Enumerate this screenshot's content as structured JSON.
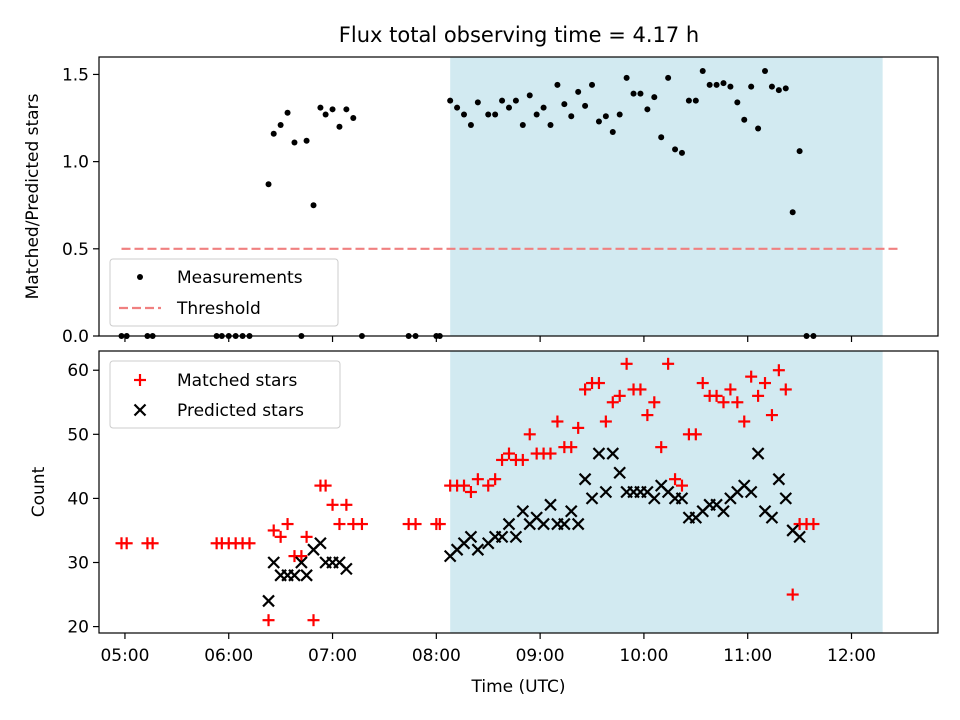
{
  "chart_data": [
    {
      "type": "scatter",
      "title": "Flux total observing time = 4.17 h",
      "xlabel": "",
      "ylabel": "Matched/Predicted stars",
      "ylim": [
        0,
        1.6
      ],
      "xlim": [
        "04:45",
        "12:50"
      ],
      "yticks": [
        "0.0",
        "0.5",
        "1.0",
        "1.5"
      ],
      "grid": false,
      "legend_position": "lower-left",
      "shaded_span": {
        "from": "08:08",
        "to": "12:18",
        "color": "#add8e6"
      },
      "threshold": {
        "name": "Threshold",
        "value": 0.5,
        "from": "04:58",
        "to": "12:28",
        "color": "#f08080"
      },
      "series": [
        {
          "name": "Measurements",
          "color": "#000000",
          "points": [
            [
              "04:58",
              0.0
            ],
            [
              "05:01",
              0.0
            ],
            [
              "05:13",
              0.0
            ],
            [
              "05:16",
              0.0
            ],
            [
              "05:53",
              0.0
            ],
            [
              "05:56",
              0.0
            ],
            [
              "06:00",
              0.0
            ],
            [
              "06:04",
              0.0
            ],
            [
              "06:08",
              0.0
            ],
            [
              "06:12",
              0.0
            ],
            [
              "06:23",
              0.87
            ],
            [
              "06:26",
              1.16
            ],
            [
              "06:30",
              1.21
            ],
            [
              "06:34",
              1.28
            ],
            [
              "06:38",
              1.11
            ],
            [
              "06:42",
              0.0
            ],
            [
              "06:45",
              1.12
            ],
            [
              "06:49",
              0.75
            ],
            [
              "06:53",
              1.31
            ],
            [
              "06:56",
              1.27
            ],
            [
              "07:00",
              1.3
            ],
            [
              "07:04",
              1.2
            ],
            [
              "07:08",
              1.3
            ],
            [
              "07:12",
              1.25
            ],
            [
              "07:17",
              0.0
            ],
            [
              "07:44",
              0.0
            ],
            [
              "07:48",
              0.0
            ],
            [
              "08:00",
              0.0
            ],
            [
              "08:02",
              0.0
            ],
            [
              "08:08",
              1.35
            ],
            [
              "08:12",
              1.31
            ],
            [
              "08:16",
              1.27
            ],
            [
              "08:20",
              1.21
            ],
            [
              "08:24",
              1.34
            ],
            [
              "08:30",
              1.27
            ],
            [
              "08:34",
              1.27
            ],
            [
              "08:38",
              1.35
            ],
            [
              "08:42",
              1.31
            ],
            [
              "08:46",
              1.35
            ],
            [
              "08:50",
              1.21
            ],
            [
              "08:54",
              1.38
            ],
            [
              "08:58",
              1.27
            ],
            [
              "09:02",
              1.31
            ],
            [
              "09:06",
              1.21
            ],
            [
              "09:10",
              1.44
            ],
            [
              "09:14",
              1.33
            ],
            [
              "09:18",
              1.26
            ],
            [
              "09:22",
              1.4
            ],
            [
              "09:26",
              1.32
            ],
            [
              "09:30",
              1.44
            ],
            [
              "09:34",
              1.23
            ],
            [
              "09:38",
              1.26
            ],
            [
              "09:42",
              1.17
            ],
            [
              "09:46",
              1.27
            ],
            [
              "09:50",
              1.48
            ],
            [
              "09:54",
              1.39
            ],
            [
              "09:58",
              1.39
            ],
            [
              "10:02",
              1.3
            ],
            [
              "10:06",
              1.37
            ],
            [
              "10:10",
              1.14
            ],
            [
              "10:14",
              1.48
            ],
            [
              "10:18",
              1.07
            ],
            [
              "10:22",
              1.05
            ],
            [
              "10:26",
              1.35
            ],
            [
              "10:30",
              1.35
            ],
            [
              "10:34",
              1.52
            ],
            [
              "10:38",
              1.44
            ],
            [
              "10:42",
              1.44
            ],
            [
              "10:46",
              1.45
            ],
            [
              "10:50",
              1.43
            ],
            [
              "10:54",
              1.34
            ],
            [
              "10:58",
              1.24
            ],
            [
              "11:02",
              1.43
            ],
            [
              "11:06",
              1.19
            ],
            [
              "11:10",
              1.52
            ],
            [
              "11:14",
              1.43
            ],
            [
              "11:18",
              1.41
            ],
            [
              "11:22",
              1.42
            ],
            [
              "11:26",
              0.71
            ],
            [
              "11:30",
              1.06
            ],
            [
              "11:34",
              0.0
            ],
            [
              "11:38",
              0.0
            ]
          ]
        }
      ]
    },
    {
      "type": "scatter",
      "title": "",
      "xlabel": "Time (UTC)",
      "ylabel": "Count",
      "ylim": [
        19,
        63
      ],
      "xlim": [
        "04:45",
        "12:50"
      ],
      "xticks": [
        "05:00",
        "06:00",
        "07:00",
        "08:00",
        "09:00",
        "10:00",
        "11:00",
        "12:00"
      ],
      "yticks": [
        "20",
        "30",
        "40",
        "50",
        "60"
      ],
      "grid": false,
      "legend_position": "upper-left",
      "shaded_span": {
        "from": "08:08",
        "to": "12:18",
        "color": "#add8e6"
      },
      "series": [
        {
          "name": "Matched stars",
          "marker": "plus",
          "color": "#ff0000",
          "points": [
            [
              "04:58",
              33
            ],
            [
              "05:01",
              33
            ],
            [
              "05:13",
              33
            ],
            [
              "05:16",
              33
            ],
            [
              "05:53",
              33
            ],
            [
              "05:56",
              33
            ],
            [
              "06:00",
              33
            ],
            [
              "06:04",
              33
            ],
            [
              "06:08",
              33
            ],
            [
              "06:12",
              33
            ],
            [
              "06:23",
              21
            ],
            [
              "06:26",
              35
            ],
            [
              "06:30",
              34
            ],
            [
              "06:34",
              36
            ],
            [
              "06:38",
              31
            ],
            [
              "06:42",
              31
            ],
            [
              "06:45",
              34
            ],
            [
              "06:49",
              21
            ],
            [
              "06:53",
              42
            ],
            [
              "06:56",
              42
            ],
            [
              "07:00",
              39
            ],
            [
              "07:04",
              36
            ],
            [
              "07:08",
              39
            ],
            [
              "07:12",
              36
            ],
            [
              "07:17",
              36
            ],
            [
              "07:44",
              36
            ],
            [
              "07:48",
              36
            ],
            [
              "08:00",
              36
            ],
            [
              "08:02",
              36
            ],
            [
              "08:08",
              42
            ],
            [
              "08:12",
              42
            ],
            [
              "08:16",
              42
            ],
            [
              "08:20",
              41
            ],
            [
              "08:24",
              43
            ],
            [
              "08:30",
              42
            ],
            [
              "08:34",
              43
            ],
            [
              "08:38",
              46
            ],
            [
              "08:42",
              47
            ],
            [
              "08:46",
              46
            ],
            [
              "08:50",
              46
            ],
            [
              "08:54",
              50
            ],
            [
              "08:58",
              47
            ],
            [
              "09:02",
              47
            ],
            [
              "09:06",
              47
            ],
            [
              "09:10",
              52
            ],
            [
              "09:14",
              48
            ],
            [
              "09:18",
              48
            ],
            [
              "09:22",
              51
            ],
            [
              "09:26",
              57
            ],
            [
              "09:30",
              58
            ],
            [
              "09:34",
              58
            ],
            [
              "09:38",
              52
            ],
            [
              "09:42",
              55
            ],
            [
              "09:46",
              56
            ],
            [
              "09:50",
              61
            ],
            [
              "09:54",
              57
            ],
            [
              "09:58",
              57
            ],
            [
              "10:02",
              53
            ],
            [
              "10:06",
              55
            ],
            [
              "10:10",
              48
            ],
            [
              "10:14",
              61
            ],
            [
              "10:18",
              43
            ],
            [
              "10:22",
              42
            ],
            [
              "10:26",
              50
            ],
            [
              "10:30",
              50
            ],
            [
              "10:34",
              58
            ],
            [
              "10:38",
              56
            ],
            [
              "10:42",
              56
            ],
            [
              "10:46",
              55
            ],
            [
              "10:50",
              57
            ],
            [
              "10:54",
              55
            ],
            [
              "10:58",
              52
            ],
            [
              "11:02",
              59
            ],
            [
              "11:06",
              56
            ],
            [
              "11:10",
              58
            ],
            [
              "11:14",
              53
            ],
            [
              "11:18",
              60
            ],
            [
              "11:22",
              57
            ],
            [
              "11:26",
              25
            ],
            [
              "11:30",
              36
            ],
            [
              "11:34",
              36
            ],
            [
              "11:38",
              36
            ]
          ]
        },
        {
          "name": "Predicted stars",
          "marker": "x",
          "color": "#000000",
          "points": [
            [
              "06:23",
              24
            ],
            [
              "06:26",
              30
            ],
            [
              "06:30",
              28
            ],
            [
              "06:34",
              28
            ],
            [
              "06:38",
              28
            ],
            [
              "06:42",
              30
            ],
            [
              "06:45",
              28
            ],
            [
              "06:49",
              32
            ],
            [
              "06:53",
              33
            ],
            [
              "06:56",
              30
            ],
            [
              "07:00",
              30
            ],
            [
              "07:04",
              30
            ],
            [
              "07:08",
              29
            ],
            [
              "08:08",
              31
            ],
            [
              "08:12",
              32
            ],
            [
              "08:16",
              33
            ],
            [
              "08:20",
              34
            ],
            [
              "08:24",
              32
            ],
            [
              "08:30",
              33
            ],
            [
              "08:34",
              34
            ],
            [
              "08:38",
              34
            ],
            [
              "08:42",
              36
            ],
            [
              "08:46",
              34
            ],
            [
              "08:50",
              38
            ],
            [
              "08:54",
              36
            ],
            [
              "08:58",
              37
            ],
            [
              "09:02",
              36
            ],
            [
              "09:06",
              39
            ],
            [
              "09:10",
              36
            ],
            [
              "09:14",
              36
            ],
            [
              "09:18",
              38
            ],
            [
              "09:22",
              36
            ],
            [
              "09:26",
              43
            ],
            [
              "09:30",
              40
            ],
            [
              "09:34",
              47
            ],
            [
              "09:38",
              41
            ],
            [
              "09:42",
              47
            ],
            [
              "09:46",
              44
            ],
            [
              "09:50",
              41
            ],
            [
              "09:54",
              41
            ],
            [
              "09:58",
              41
            ],
            [
              "10:02",
              41
            ],
            [
              "10:06",
              40
            ],
            [
              "10:10",
              42
            ],
            [
              "10:14",
              41
            ],
            [
              "10:18",
              40
            ],
            [
              "10:22",
              40
            ],
            [
              "10:26",
              37
            ],
            [
              "10:30",
              37
            ],
            [
              "10:34",
              38
            ],
            [
              "10:38",
              39
            ],
            [
              "10:42",
              39
            ],
            [
              "10:46",
              38
            ],
            [
              "10:50",
              40
            ],
            [
              "10:54",
              41
            ],
            [
              "10:58",
              42
            ],
            [
              "11:02",
              41
            ],
            [
              "11:06",
              47
            ],
            [
              "11:10",
              38
            ],
            [
              "11:14",
              37
            ],
            [
              "11:18",
              43
            ],
            [
              "11:22",
              40
            ],
            [
              "11:26",
              35
            ],
            [
              "11:30",
              34
            ]
          ]
        }
      ]
    }
  ]
}
